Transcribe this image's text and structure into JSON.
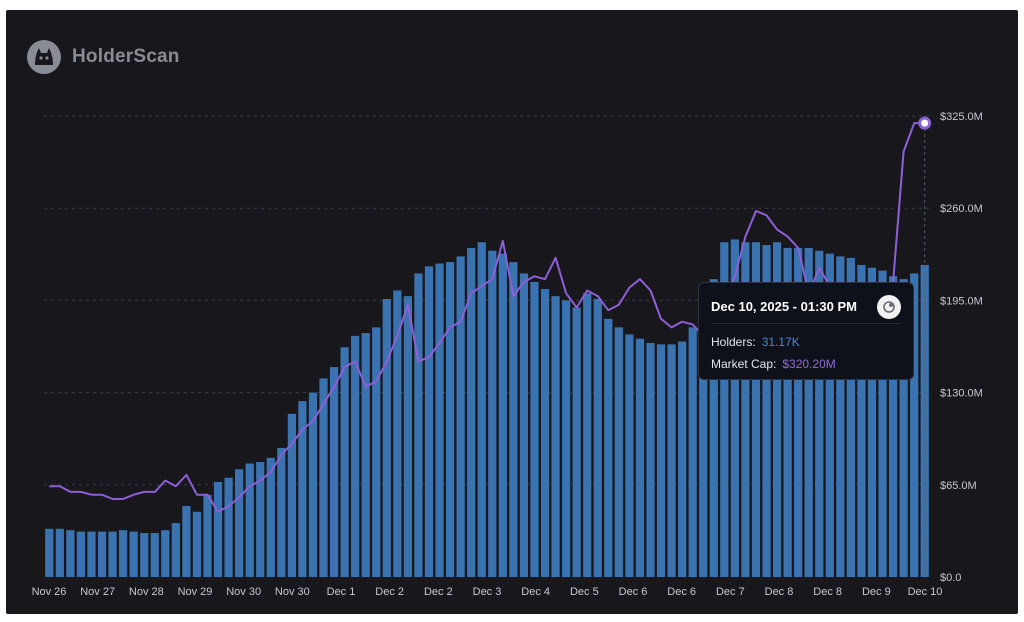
{
  "brand": {
    "name": "HolderScan",
    "icon": "cat-logo-icon"
  },
  "colors": {
    "background": "#17171c",
    "bars": "#3a73b0",
    "line": "#8e5fd6",
    "grid": "#3a3d47"
  },
  "tooltip": {
    "date": "Dec 10, 2025 - 01:30 PM",
    "holders_label": "Holders:",
    "holders_value": "31.17K",
    "mcap_label": "Market Cap:",
    "mcap_value": "$320.20M",
    "icon": "token-icon"
  },
  "chart_data": {
    "type": "bar",
    "title": "",
    "xlabel": "",
    "ylabel": "",
    "ylim": [
      0,
      325
    ],
    "y_ticks": [
      "$0.0",
      "$65.0M",
      "$130.0M",
      "$195.0M",
      "$260.0M",
      "$325.0M"
    ],
    "x_ticks": [
      "Nov 26",
      "Nov 27",
      "Nov 28",
      "Nov 29",
      "Nov 30",
      "Nov 30",
      "Dec 1",
      "Dec 2",
      "Dec 2",
      "Dec 3",
      "Dec 4",
      "Dec 5",
      "Dec 6",
      "Dec 6",
      "Dec 7",
      "Dec 8",
      "Dec 8",
      "Dec 9",
      "Dec 10"
    ],
    "legend": "none",
    "grid": "horizontal dashed",
    "series": [
      {
        "kind": "bar",
        "values": [
          34,
          34,
          33,
          32,
          32,
          32,
          32,
          33,
          32,
          31,
          31,
          33,
          38,
          50,
          46,
          58,
          67,
          70,
          76,
          80,
          81,
          84,
          91,
          115,
          124,
          130,
          140,
          148,
          162,
          170,
          172,
          176,
          196,
          202,
          198,
          214,
          219,
          221,
          222,
          226,
          232,
          236,
          230,
          228,
          222,
          214,
          208,
          203,
          198,
          195,
          190,
          200,
          196,
          182,
          176,
          171,
          168,
          165,
          164,
          164,
          166,
          176,
          198,
          210,
          236,
          238,
          236,
          236,
          234,
          236,
          232,
          232,
          232,
          230,
          228,
          226,
          225,
          220,
          218,
          216,
          212,
          210,
          214,
          220
        ]
      },
      {
        "kind": "line",
        "values": [
          64,
          64,
          60,
          60,
          58,
          58,
          55,
          55,
          58,
          60,
          60,
          68,
          64,
          72,
          58,
          58,
          46,
          50,
          56,
          64,
          68,
          74,
          86,
          94,
          104,
          110,
          122,
          134,
          148,
          152,
          134,
          138,
          152,
          170,
          192,
          152,
          155,
          165,
          176,
          180,
          200,
          205,
          210,
          237,
          198,
          208,
          212,
          210,
          225,
          200,
          190,
          202,
          198,
          188,
          192,
          204,
          210,
          202,
          182,
          176,
          180,
          178,
          170,
          168,
          195,
          212,
          240,
          258,
          255,
          245,
          240,
          232,
          200,
          218,
          205,
          200,
          185,
          180,
          170,
          175,
          208,
          300,
          320,
          320
        ]
      }
    ],
    "tooltip_point": {
      "label": "Dec 10",
      "y": 320.2
    }
  }
}
